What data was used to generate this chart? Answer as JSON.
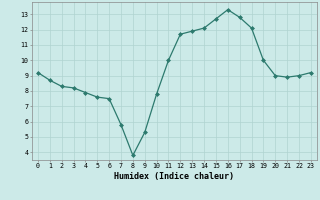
{
  "x": [
    0,
    1,
    2,
    3,
    4,
    5,
    6,
    7,
    8,
    9,
    10,
    11,
    12,
    13,
    14,
    15,
    16,
    17,
    18,
    19,
    20,
    21,
    22,
    23
  ],
  "y": [
    9.2,
    8.7,
    8.3,
    8.2,
    7.9,
    7.6,
    7.5,
    5.8,
    3.8,
    5.3,
    7.8,
    10.0,
    11.7,
    11.9,
    12.1,
    12.7,
    13.3,
    12.8,
    12.1,
    10.0,
    9.0,
    8.9,
    9.0,
    9.2
  ],
  "xlabel": "Humidex (Indice chaleur)",
  "line_color": "#2d7a6e",
  "bg_color": "#cceae8",
  "grid_color": "#b0d4d0",
  "ylim": [
    3.5,
    13.8
  ],
  "xlim": [
    -0.5,
    23.5
  ],
  "yticks": [
    4,
    5,
    6,
    7,
    8,
    9,
    10,
    11,
    12,
    13
  ],
  "xticks": [
    0,
    1,
    2,
    3,
    4,
    5,
    6,
    7,
    8,
    9,
    10,
    11,
    12,
    13,
    14,
    15,
    16,
    17,
    18,
    19,
    20,
    21,
    22,
    23
  ]
}
